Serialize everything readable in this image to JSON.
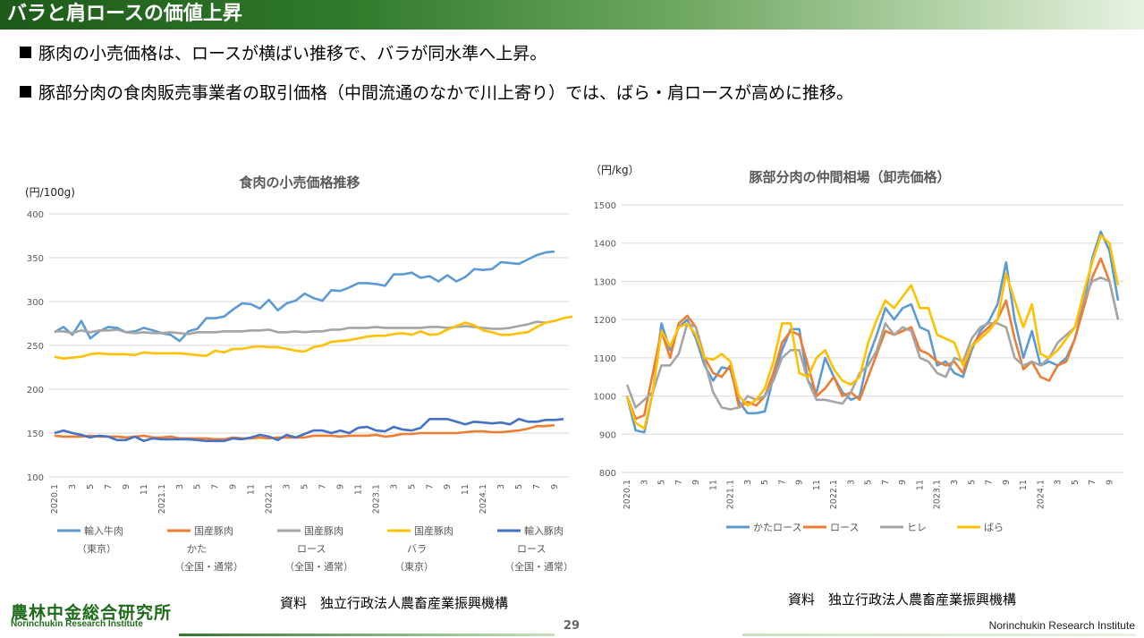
{
  "header": {
    "title": "バラと肩ロースの価値上昇"
  },
  "bullets": [
    "豚肉の小売価格は、ロースが横ばい推移で、バラが同水準へ上昇。",
    "豚部分肉の食肉販売事業者の取引価格（中間流通のなかで川上寄り）では、ばら・肩ロースが高めに推移。"
  ],
  "chart_data": [
    {
      "type": "line",
      "title": "食肉の小売価格推移",
      "ylabel": "(円/100g)",
      "ylim": [
        100,
        400
      ],
      "yticks": [
        100,
        150,
        200,
        250,
        300,
        350,
        400
      ],
      "grid": true,
      "x_tick_labels": [
        "2020.1",
        "3",
        "5",
        "7",
        "9",
        "11",
        "2021.1",
        "3",
        "5",
        "7",
        "9",
        "11",
        "2022.1",
        "3",
        "5",
        "7",
        "9",
        "11",
        "2023.1",
        "3",
        "5",
        "7",
        "9",
        "11",
        "2024.1",
        "3",
        "5",
        "7",
        "9"
      ],
      "legend_position": "bottom",
      "series": [
        {
          "name": "輸入牛肉",
          "sub": [
            "（東京）"
          ],
          "color": "#5b9bd5",
          "values": [
            265,
            271,
            262,
            278,
            258,
            266,
            271,
            270,
            265,
            266,
            270,
            267,
            264,
            262,
            255,
            266,
            269,
            281,
            281,
            283,
            291,
            298,
            297,
            292,
            302,
            290,
            298,
            301,
            309,
            304,
            301,
            313,
            312,
            316,
            321,
            321,
            320,
            318,
            331,
            331,
            333,
            327,
            329,
            323,
            330,
            323,
            328,
            337,
            336,
            337,
            345,
            344,
            343,
            348,
            353,
            356,
            357
          ]
        },
        {
          "name": "国産豚肉",
          "sub": [
            "かた",
            "（全国・通常）"
          ],
          "color": "#ed7d31",
          "values": [
            147,
            146,
            146,
            146,
            147,
            146,
            146,
            146,
            145,
            146,
            147,
            145,
            145,
            146,
            144,
            144,
            144,
            144,
            143,
            143,
            145,
            144,
            144,
            145,
            144,
            145,
            145,
            145,
            145,
            147,
            147,
            147,
            146,
            147,
            147,
            147,
            148,
            146,
            147,
            149,
            149,
            150,
            150,
            150,
            150,
            150,
            151,
            152,
            152,
            151,
            151,
            152,
            153,
            155,
            158,
            158,
            159
          ]
        },
        {
          "name": "国産豚肉",
          "sub": [
            "ロース",
            "（全国・通常）"
          ],
          "color": "#a5a5a5",
          "values": [
            266,
            266,
            264,
            267,
            265,
            267,
            267,
            268,
            265,
            264,
            265,
            264,
            264,
            265,
            264,
            263,
            265,
            265,
            265,
            266,
            266,
            266,
            267,
            267,
            268,
            265,
            265,
            266,
            265,
            266,
            266,
            268,
            268,
            270,
            270,
            270,
            271,
            270,
            270,
            270,
            270,
            270,
            271,
            271,
            270,
            271,
            272,
            271,
            270,
            269,
            269,
            270,
            272,
            274,
            277,
            276,
            278
          ]
        },
        {
          "name": "国産豚肉",
          "sub": [
            "バラ",
            "（東京）"
          ],
          "color": "#ffc000",
          "values": [
            237,
            235,
            236,
            237,
            240,
            241,
            240,
            240,
            240,
            239,
            242,
            241,
            241,
            241,
            241,
            240,
            239,
            238,
            244,
            242,
            246,
            246,
            248,
            249,
            248,
            248,
            246,
            244,
            243,
            248,
            250,
            254,
            255,
            256,
            258,
            260,
            261,
            261,
            263,
            264,
            262,
            266,
            262,
            263,
            268,
            272,
            276,
            273,
            267,
            265,
            262,
            262,
            264,
            265,
            271,
            276,
            278,
            281,
            283
          ]
        },
        {
          "name": "輸入豚肉",
          "sub": [
            "ロース",
            "（全国・通常）"
          ],
          "color": "#4472c4",
          "values": [
            150,
            153,
            150,
            148,
            145,
            147,
            146,
            142,
            142,
            146,
            141,
            144,
            143,
            143,
            143,
            143,
            142,
            141,
            141,
            141,
            144,
            143,
            145,
            148,
            146,
            142,
            148,
            145,
            149,
            153,
            153,
            150,
            153,
            150,
            156,
            157,
            153,
            152,
            157,
            154,
            153,
            156,
            166,
            166,
            166,
            163,
            160,
            163,
            162,
            161,
            162,
            160,
            166,
            163,
            163,
            165,
            165,
            166
          ]
        }
      ],
      "source": "資料　独立行政法人農畜産業振興機構"
    },
    {
      "type": "line",
      "title": "豚部分肉の仲間相場（卸売価格）",
      "ylabel": "（円/kg）",
      "ylim": [
        800,
        1500
      ],
      "yticks": [
        800,
        900,
        1000,
        1100,
        1200,
        1300,
        1400,
        1500
      ],
      "grid": true,
      "x_tick_labels": [
        "2020.1",
        "3",
        "5",
        "7",
        "9",
        "11",
        "2021.1",
        "3",
        "5",
        "7",
        "9",
        "11",
        "2022.1",
        "3",
        "5",
        "7",
        "9",
        "11",
        "2023.1",
        "3",
        "5",
        "7",
        "9",
        "11",
        "2024.1",
        "3",
        "5",
        "7",
        "9"
      ],
      "legend_position": "bottom",
      "series": [
        {
          "name": "かたロース",
          "color": "#5b9bd5",
          "values": [
            1000,
            910,
            905,
            1010,
            1190,
            1120,
            1180,
            1200,
            1150,
            1080,
            1040,
            1075,
            1070,
            985,
            955,
            955,
            960,
            1050,
            1120,
            1175,
            1175,
            1040,
            1010,
            1100,
            1050,
            1010,
            990,
            1000,
            1100,
            1160,
            1230,
            1200,
            1230,
            1240,
            1180,
            1170,
            1080,
            1090,
            1060,
            1050,
            1120,
            1170,
            1195,
            1240,
            1350,
            1200,
            1100,
            1170,
            1080,
            1090,
            1080,
            1100,
            1150,
            1240,
            1360,
            1430,
            1380,
            1250
          ]
        },
        {
          "name": "ロース",
          "color": "#ed7d31",
          "values": [
            1000,
            940,
            950,
            1060,
            1170,
            1100,
            1190,
            1210,
            1180,
            1100,
            1060,
            1050,
            1080,
            970,
            985,
            975,
            1000,
            1060,
            1140,
            1170,
            1160,
            1080,
            1000,
            1020,
            1050,
            1000,
            1010,
            990,
            1050,
            1110,
            1170,
            1160,
            1170,
            1180,
            1120,
            1110,
            1090,
            1080,
            1090,
            1060,
            1130,
            1160,
            1180,
            1200,
            1250,
            1150,
            1070,
            1090,
            1050,
            1040,
            1080,
            1090,
            1150,
            1230,
            1310,
            1360,
            1300,
            1200
          ]
        },
        {
          "name": "ヒレ",
          "color": "#a5a5a5",
          "values": [
            1030,
            970,
            990,
            1010,
            1080,
            1080,
            1110,
            1190,
            1180,
            1090,
            1010,
            970,
            965,
            970,
            1000,
            990,
            1000,
            1040,
            1100,
            1120,
            1120,
            1040,
            990,
            990,
            985,
            980,
            1010,
            1060,
            1080,
            1120,
            1190,
            1160,
            1180,
            1170,
            1100,
            1090,
            1060,
            1050,
            1100,
            1090,
            1150,
            1180,
            1190,
            1190,
            1180,
            1100,
            1080,
            1090,
            1080,
            1100,
            1140,
            1160,
            1180,
            1250,
            1300,
            1310,
            1300,
            1200
          ]
        },
        {
          "name": "ばら",
          "color": "#ffc000",
          "values": [
            1000,
            930,
            915,
            1010,
            1170,
            1130,
            1180,
            1190,
            1160,
            1100,
            1095,
            1110,
            1090,
            1000,
            975,
            990,
            1020,
            1090,
            1190,
            1190,
            1060,
            1050,
            1100,
            1120,
            1070,
            1040,
            1030,
            1050,
            1140,
            1200,
            1250,
            1230,
            1260,
            1290,
            1230,
            1230,
            1160,
            1150,
            1140,
            1080,
            1130,
            1150,
            1170,
            1200,
            1320,
            1250,
            1180,
            1240,
            1110,
            1100,
            1120,
            1150,
            1180,
            1270,
            1350,
            1420,
            1400,
            1290
          ]
        }
      ],
      "source": "資料　独立行政法人農畜産業振興機構"
    }
  ],
  "footer": {
    "logo_jp": "農林中金総合研究所",
    "logo_en": "Norinchukin Research Institute",
    "page_number": "29",
    "org_en": "Norinchukin Research Institute"
  }
}
